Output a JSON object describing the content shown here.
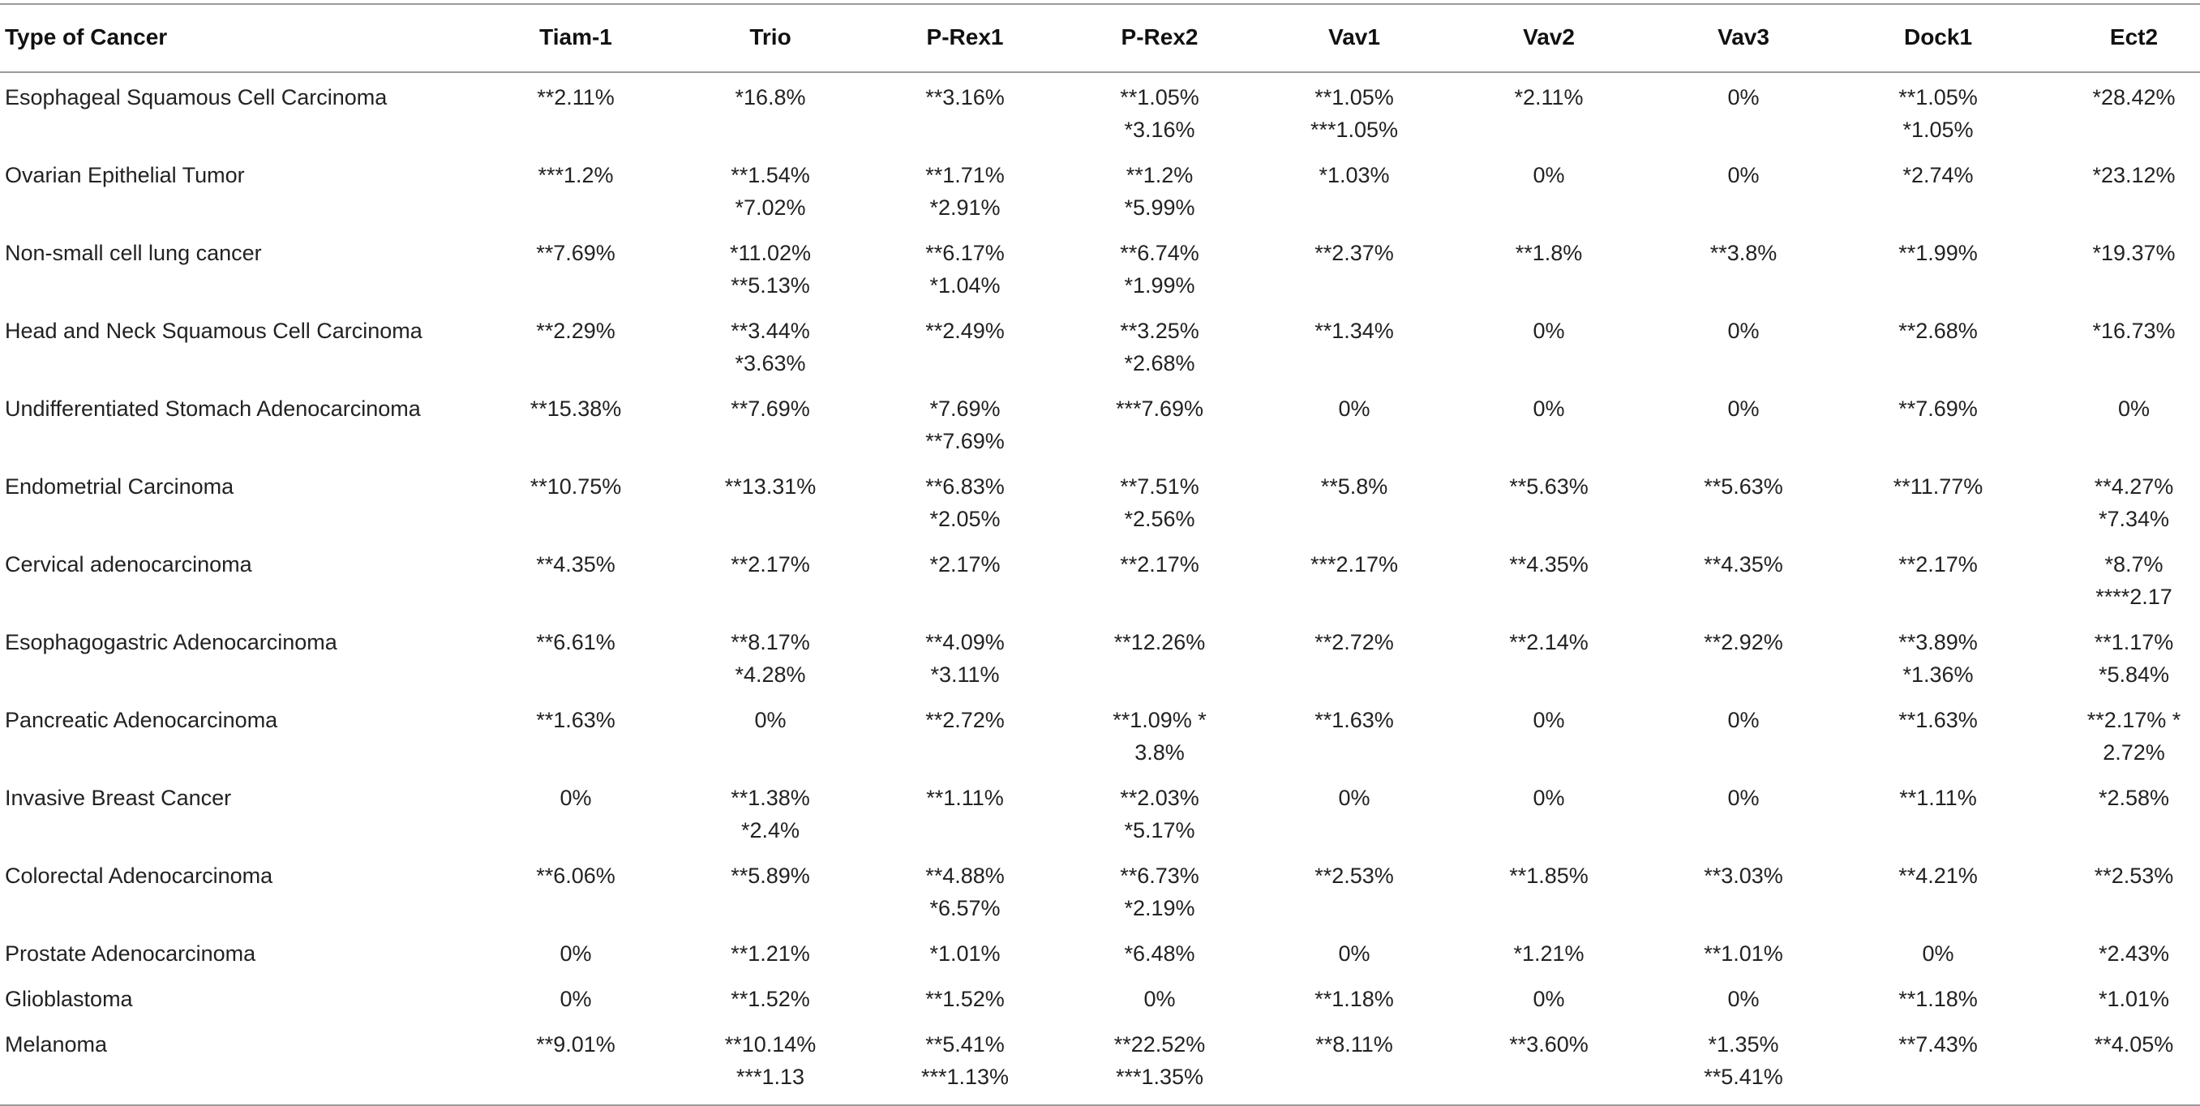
{
  "table": {
    "headers": [
      "Type of Cancer",
      "Tiam-1",
      "Trio",
      "P-Rex1",
      "P-Rex2",
      "Vav1",
      "Vav2",
      "Vav3",
      "Dock1",
      "Ect2"
    ],
    "rows": [
      {
        "cancer": "Esophageal Squamous Cell Carcinoma",
        "cells": [
          [
            "**2.11%"
          ],
          [
            "*16.8%"
          ],
          [
            "**3.16%"
          ],
          [
            "**1.05%",
            "*3.16%"
          ],
          [
            "**1.05%",
            "***1.05%"
          ],
          [
            "*2.11%"
          ],
          [
            "0%"
          ],
          [
            "**1.05%",
            "*1.05%"
          ],
          [
            "*28.42%"
          ]
        ]
      },
      {
        "cancer": "Ovarian Epithelial Tumor",
        "cells": [
          [
            "***1.2%"
          ],
          [
            "**1.54%",
            "*7.02%"
          ],
          [
            "**1.71%",
            "*2.91%"
          ],
          [
            "**1.2%",
            "*5.99%"
          ],
          [
            "*1.03%"
          ],
          [
            "0%"
          ],
          [
            "0%"
          ],
          [
            "*2.74%"
          ],
          [
            "*23.12%"
          ]
        ]
      },
      {
        "cancer": "Non-small cell lung cancer",
        "cells": [
          [
            "**7.69%"
          ],
          [
            "*11.02%",
            "**5.13%"
          ],
          [
            "**6.17%",
            "*1.04%"
          ],
          [
            "**6.74%",
            "*1.99%"
          ],
          [
            "**2.37%"
          ],
          [
            "**1.8%"
          ],
          [
            "**3.8%"
          ],
          [
            "**1.99%"
          ],
          [
            "*19.37%"
          ]
        ]
      },
      {
        "cancer": "Head and Neck Squamous Cell Carcinoma",
        "cells": [
          [
            "**2.29%"
          ],
          [
            "**3.44%",
            "*3.63%"
          ],
          [
            "**2.49%"
          ],
          [
            "**3.25%",
            "*2.68%"
          ],
          [
            "**1.34%"
          ],
          [
            "0%"
          ],
          [
            "0%"
          ],
          [
            "**2.68%"
          ],
          [
            "*16.73%"
          ]
        ]
      },
      {
        "cancer": "Undifferentiated Stomach Adenocarcinoma",
        "cells": [
          [
            "**15.38%"
          ],
          [
            "**7.69%"
          ],
          [
            "*7.69%",
            "**7.69%"
          ],
          [
            "***7.69%"
          ],
          [
            "0%"
          ],
          [
            "0%"
          ],
          [
            "0%"
          ],
          [
            "**7.69%"
          ],
          [
            "0%"
          ]
        ]
      },
      {
        "cancer": "Endometrial Carcinoma",
        "cells": [
          [
            "**10.75%"
          ],
          [
            "**13.31%"
          ],
          [
            "**6.83%",
            "*2.05%"
          ],
          [
            "**7.51%",
            "*2.56%"
          ],
          [
            "**5.8%"
          ],
          [
            "**5.63%"
          ],
          [
            "**5.63%"
          ],
          [
            "**11.77%"
          ],
          [
            "**4.27%",
            "*7.34%"
          ]
        ]
      },
      {
        "cancer": "Cervical adenocarcinoma",
        "cells": [
          [
            "**4.35%"
          ],
          [
            "**2.17%"
          ],
          [
            "*2.17%"
          ],
          [
            "**2.17%"
          ],
          [
            "***2.17%"
          ],
          [
            "**4.35%"
          ],
          [
            "**4.35%"
          ],
          [
            "**2.17%"
          ],
          [
            "*8.7%",
            "****2.17"
          ]
        ]
      },
      {
        "cancer": "Esophagogastric Adenocarcinoma",
        "cells": [
          [
            "**6.61%"
          ],
          [
            "**8.17%",
            "*4.28%"
          ],
          [
            "**4.09%",
            "*3.11%"
          ],
          [
            "**12.26%"
          ],
          [
            "**2.72%"
          ],
          [
            "**2.14%"
          ],
          [
            "**2.92%"
          ],
          [
            "**3.89%",
            "*1.36%"
          ],
          [
            "**1.17%",
            "*5.84%"
          ]
        ]
      },
      {
        "cancer": "Pancreatic Adenocarcinoma",
        "cells": [
          [
            "**1.63%"
          ],
          [
            "0%"
          ],
          [
            "**2.72%"
          ],
          [
            "**1.09% *",
            "3.8%"
          ],
          [
            "**1.63%"
          ],
          [
            "0%"
          ],
          [
            "0%"
          ],
          [
            "**1.63%"
          ],
          [
            "**2.17% *",
            "2.72%"
          ]
        ]
      },
      {
        "cancer": "Invasive Breast Cancer",
        "cells": [
          [
            "0%"
          ],
          [
            "**1.38%",
            "*2.4%"
          ],
          [
            "**1.11%"
          ],
          [
            "**2.03%",
            "*5.17%"
          ],
          [
            "0%"
          ],
          [
            "0%"
          ],
          [
            "0%"
          ],
          [
            "**1.11%"
          ],
          [
            "*2.58%"
          ]
        ]
      },
      {
        "cancer": "Colorectal Adenocarcinoma",
        "cells": [
          [
            "**6.06%"
          ],
          [
            "**5.89%"
          ],
          [
            "**4.88%",
            "*6.57%"
          ],
          [
            "**6.73%",
            "*2.19%"
          ],
          [
            "**2.53%"
          ],
          [
            "**1.85%"
          ],
          [
            "**3.03%"
          ],
          [
            "**4.21%"
          ],
          [
            "**2.53%"
          ]
        ]
      },
      {
        "cancer": "Prostate Adenocarcinoma",
        "cells": [
          [
            "0%"
          ],
          [
            "**1.21%"
          ],
          [
            "*1.01%"
          ],
          [
            "*6.48%"
          ],
          [
            "0%"
          ],
          [
            "*1.21%"
          ],
          [
            "**1.01%"
          ],
          [
            "0%"
          ],
          [
            "*2.43%"
          ]
        ]
      },
      {
        "cancer": "Glioblastoma",
        "cells": [
          [
            "0%"
          ],
          [
            "**1.52%"
          ],
          [
            "**1.52%"
          ],
          [
            "0%"
          ],
          [
            "**1.18%"
          ],
          [
            "0%"
          ],
          [
            "0%"
          ],
          [
            "**1.18%"
          ],
          [
            "*1.01%"
          ]
        ]
      },
      {
        "cancer": "Melanoma",
        "cells": [
          [
            "**9.01%"
          ],
          [
            "**10.14%",
            "***1.13"
          ],
          [
            "**5.41%",
            "***1.13%"
          ],
          [
            "**22.52%",
            "***1.35%"
          ],
          [
            "**8.11%"
          ],
          [
            "**3.60%"
          ],
          [
            "*1.35%",
            "**5.41%"
          ],
          [
            "**7.43%"
          ],
          [
            "**4.05%"
          ]
        ]
      }
    ]
  }
}
